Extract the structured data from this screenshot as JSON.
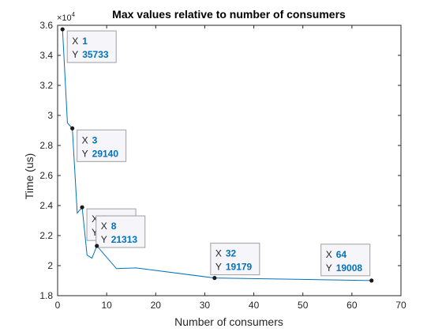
{
  "chart_data": {
    "type": "line",
    "title": "Max values relative to number of consumers",
    "xlabel": "Number of consumers",
    "ylabel": "Time (us)",
    "y_exponent_label": "×10",
    "y_exponent_power": "4",
    "xlim": [
      0,
      70
    ],
    "ylim": [
      18000,
      36000
    ],
    "x_ticks": [
      0,
      10,
      20,
      30,
      40,
      50,
      60,
      70
    ],
    "y_ticks": [
      18000,
      20000,
      22000,
      24000,
      26000,
      28000,
      30000,
      32000,
      34000,
      36000
    ],
    "y_tick_labels": [
      "1.8",
      "2",
      "2.2",
      "2.4",
      "2.6",
      "2.8",
      "3",
      "3.2",
      "3.4",
      "3.6"
    ],
    "grid": false,
    "series": [
      {
        "x": [
          1,
          2,
          3,
          4,
          5,
          6,
          7,
          8,
          12,
          16,
          32,
          64
        ],
        "y": [
          35733,
          29500,
          29140,
          23500,
          23886,
          20700,
          20500,
          21313,
          19800,
          19850,
          19179,
          19008
        ]
      }
    ],
    "datatips": [
      {
        "x": 1,
        "y": 35733,
        "x_label": "X",
        "x_value": "1",
        "y_label": "Y",
        "y_value": "35733"
      },
      {
        "x": 3,
        "y": 29140,
        "x_label": "X",
        "x_value": "3",
        "y_label": "Y",
        "y_value": "29140"
      },
      {
        "x": 5,
        "y": 23886,
        "x_label": "X",
        "x_value": "5",
        "y_label": "Y",
        "y_value": "23886"
      },
      {
        "x": 8,
        "y": 21313,
        "x_label": "X",
        "x_value": "8",
        "y_label": "Y",
        "y_value": "21313"
      },
      {
        "x": 32,
        "y": 19179,
        "x_label": "X",
        "x_value": "32",
        "y_label": "Y",
        "y_value": "19179"
      },
      {
        "x": 64,
        "y": 19008,
        "x_label": "X",
        "x_value": "64",
        "y_label": "Y",
        "y_value": "19008"
      }
    ],
    "colors": {
      "line": "#0072bd",
      "value_text": "#0072bd",
      "marker": "#1a1a1a",
      "axis": "#262626",
      "tip_background": "#f5f5fa",
      "tip_border": "#a0a0a0"
    }
  }
}
